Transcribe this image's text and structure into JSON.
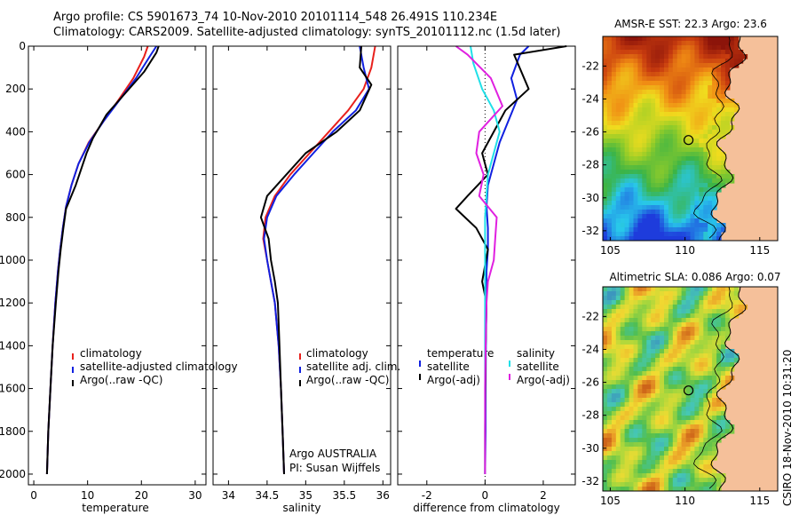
{
  "header": {
    "line1": "Argo profile: CS 5901673_74 10-Nov-2010 20101114_548 26.491S 110.234E",
    "line2": "Climatology: CARS2009. Satellite-adjusted climatology: synTS_20101112.nc (1.5d later)"
  },
  "credit": "CSIRO 18-Nov-2010 10:31:20",
  "colors": {
    "climatology": "#e8201c",
    "satellite": "#1020e0",
    "argo": "#000000",
    "sal_satellite": "#20e0e8",
    "sal_argo": "#e020e0",
    "land": "#f5c09a"
  },
  "chart_data": [
    {
      "type": "line",
      "xlabel": "temperature",
      "ylabel": "",
      "xlim": [
        -1,
        32
      ],
      "ylim": [
        2050,
        0
      ],
      "xticks": [
        0,
        10,
        20,
        30
      ],
      "yticks": [
        0,
        200,
        400,
        600,
        800,
        1000,
        1200,
        1400,
        1600,
        1800,
        2000
      ],
      "legend": [
        "climatology",
        "satellite-adjusted climatology",
        "Argo(..raw -QC)"
      ],
      "annotation": [],
      "series": [
        {
          "name": "climatology",
          "color": "#e8201c",
          "x": [
            21.2,
            20.5,
            18.5,
            15.8,
            13.0,
            10.2,
            8.3,
            7.0,
            6.0,
            5.4,
            4.9,
            4.5,
            4.0,
            3.5,
            3.1,
            2.7,
            2.45
          ],
          "y": [
            0,
            50,
            150,
            250,
            350,
            450,
            550,
            650,
            750,
            850,
            950,
            1050,
            1200,
            1400,
            1600,
            1800,
            2000
          ]
        },
        {
          "name": "satellite-adjusted climatology",
          "color": "#1020e0",
          "x": [
            22.8,
            21.5,
            19.0,
            16.0,
            13.0,
            10.3,
            8.3,
            7.0,
            6.0,
            5.4,
            4.9,
            4.5,
            4.0,
            3.5,
            3.1,
            2.7,
            2.45
          ],
          "y": [
            0,
            50,
            150,
            250,
            350,
            450,
            550,
            650,
            750,
            850,
            950,
            1050,
            1200,
            1400,
            1600,
            1800,
            2000
          ]
        },
        {
          "name": "Argo(..raw -QC)",
          "color": "#000000",
          "x": [
            23.2,
            22.8,
            20.5,
            17.0,
            13.5,
            11.0,
            9.8,
            7.8,
            6.0,
            5.5,
            5.0,
            4.6,
            4.1,
            3.5,
            3.1,
            2.7,
            2.45
          ],
          "y": [
            0,
            30,
            120,
            220,
            320,
            430,
            500,
            650,
            760,
            850,
            950,
            1050,
            1200,
            1400,
            1600,
            1800,
            2000
          ]
        }
      ]
    },
    {
      "type": "line",
      "xlabel": "salinity",
      "ylabel": "",
      "xlim": [
        33.8,
        36.1
      ],
      "ylim": [
        2050,
        0
      ],
      "xticks": [
        34,
        34.5,
        35,
        35.5,
        36
      ],
      "yticks": [
        0,
        200,
        400,
        600,
        800,
        1000,
        1200,
        1400,
        1600,
        1800,
        2000
      ],
      "legend": [
        "climatology",
        "satellite adj. clim.",
        "Argo(..raw -QC)"
      ],
      "annotation": [
        "Argo AUSTRALIA",
        "PI: Susan Wijffels"
      ],
      "series": [
        {
          "name": "climatology",
          "color": "#e8201c",
          "x": [
            35.9,
            35.85,
            35.75,
            35.55,
            35.3,
            35.05,
            34.8,
            34.6,
            34.48,
            34.45,
            34.5,
            34.55,
            34.6,
            34.65,
            34.68,
            34.7,
            34.72
          ],
          "y": [
            0,
            100,
            200,
            300,
            400,
            500,
            600,
            700,
            800,
            900,
            1000,
            1100,
            1200,
            1400,
            1600,
            1800,
            2000
          ]
        },
        {
          "name": "satellite adj. clim.",
          "color": "#1020e0",
          "x": [
            35.7,
            35.75,
            35.82,
            35.65,
            35.35,
            35.1,
            34.85,
            34.62,
            34.5,
            34.46,
            34.5,
            34.55,
            34.6,
            34.65,
            34.68,
            34.7,
            34.72
          ],
          "y": [
            0,
            100,
            200,
            300,
            400,
            500,
            600,
            700,
            800,
            900,
            1000,
            1100,
            1200,
            1400,
            1600,
            1800,
            2000
          ]
        },
        {
          "name": "Argo(..raw -QC)",
          "color": "#000000",
          "x": [
            35.72,
            35.7,
            35.85,
            35.7,
            35.4,
            35.0,
            34.75,
            34.5,
            34.42,
            34.52,
            34.55,
            34.6,
            34.64,
            34.66,
            34.68,
            34.7,
            34.72
          ],
          "y": [
            0,
            100,
            180,
            300,
            400,
            500,
            600,
            700,
            800,
            900,
            1000,
            1100,
            1200,
            1400,
            1600,
            1800,
            2000
          ]
        }
      ]
    },
    {
      "type": "line",
      "xlabel": "difference from climatology",
      "ylabel": "",
      "xlim": [
        -3,
        3.1
      ],
      "ylim": [
        2050,
        0
      ],
      "xticks": [
        -2,
        0,
        2
      ],
      "yticks": [
        0,
        200,
        400,
        600,
        800,
        1000,
        1200,
        1400,
        1600,
        1800,
        2000
      ],
      "legend_groups": [
        {
          "heading": "temperature",
          "entries": [
            "satellite",
            "Argo(-adj)"
          ]
        },
        {
          "heading": "salinity",
          "entries": [
            "satellite",
            "Argo(-adj)"
          ]
        }
      ],
      "annotation": [],
      "series": [
        {
          "name": "temperature satellite",
          "color": "#1020e0",
          "x": [
            1.5,
            1.2,
            0.9,
            1.1,
            0.8,
            0.5,
            0.3,
            0.1,
            0.05,
            0.1,
            0.1,
            0.05,
            0.05,
            0.03,
            0.02,
            0.02,
            0.0
          ],
          "y": [
            0,
            40,
            150,
            250,
            350,
            450,
            550,
            650,
            750,
            850,
            950,
            1050,
            1200,
            1400,
            1600,
            1800,
            2000
          ]
        },
        {
          "name": "temperature Argo(-adj)",
          "color": "#000000",
          "x": [
            2.8,
            1.0,
            1.5,
            0.7,
            0.3,
            -0.1,
            0.1,
            -0.6,
            -1.0,
            -0.3,
            0.1,
            -0.1,
            0.05,
            0.02,
            0.01,
            0.0,
            0.0
          ],
          "y": [
            0,
            40,
            200,
            300,
            400,
            500,
            600,
            700,
            760,
            850,
            950,
            1100,
            1200,
            1400,
            1600,
            1800,
            2000
          ]
        },
        {
          "name": "salinity satellite",
          "color": "#20e0e8",
          "x": [
            -0.5,
            -0.4,
            -0.1,
            0.3,
            0.5,
            0.3,
            0.1,
            0.05,
            0.0,
            0.0,
            0.0,
            0.0,
            0.0,
            0.0,
            0.0,
            0.0,
            0.0
          ],
          "y": [
            0,
            80,
            200,
            300,
            400,
            500,
            600,
            700,
            800,
            900,
            1000,
            1100,
            1200,
            1400,
            1600,
            1800,
            2000
          ]
        },
        {
          "name": "salinity Argo(-adj)",
          "color": "#e020e0",
          "x": [
            -1.0,
            -0.6,
            0.2,
            0.6,
            -0.2,
            -0.3,
            -0.05,
            -0.2,
            0.4,
            0.35,
            0.3,
            0.1,
            0.05,
            0.02,
            0.0,
            0.0,
            0.0
          ],
          "y": [
            0,
            40,
            150,
            280,
            400,
            500,
            600,
            700,
            800,
            900,
            1000,
            1100,
            1200,
            1400,
            1600,
            1800,
            2000
          ]
        }
      ]
    },
    {
      "type": "heatmap",
      "title": "AMSR-E SST: 22.3 Argo: 23.6",
      "xlabel": "",
      "ylabel": "",
      "xlim": [
        104.5,
        116.2
      ],
      "ylim": [
        -32.6,
        -20.2
      ],
      "xticks": [
        105,
        110,
        115
      ],
      "yticks": [
        -22,
        -24,
        -26,
        -28,
        -30,
        -32
      ],
      "marker": {
        "lon": 110.234,
        "lat": -26.491
      }
    },
    {
      "type": "heatmap",
      "title": "Altimetric SLA: 0.086 Argo: 0.07",
      "xlabel": "",
      "ylabel": "",
      "xlim": [
        104.5,
        116.2
      ],
      "ylim": [
        -32.6,
        -20.2
      ],
      "xticks": [
        105,
        110,
        115
      ],
      "yticks": [
        -22,
        -24,
        -26,
        -28,
        -30,
        -32
      ],
      "marker": {
        "lon": 110.234,
        "lat": -26.491
      }
    }
  ]
}
